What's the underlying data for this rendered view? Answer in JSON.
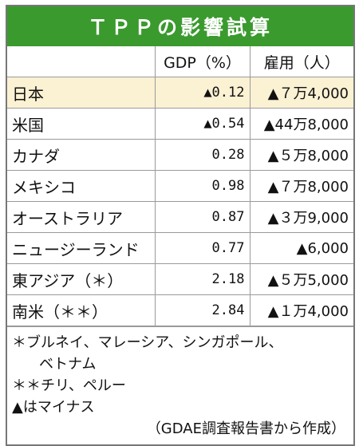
{
  "title": "ＴＰＰの影響試算",
  "table": {
    "headers": [
      "",
      "GDP（%）",
      "雇用（人）"
    ],
    "rows": [
      {
        "name": "日本",
        "gdp": "▲0.12",
        "employment": "▲７万4,000"
      },
      {
        "name": "米国",
        "gdp": "▲0.54",
        "employment": "▲44万8,000"
      },
      {
        "name": "カナダ",
        "gdp": "0.28",
        "employment": "▲５万8,000"
      },
      {
        "name": "メキシコ",
        "gdp": "0.98",
        "employment": "▲７万8,000"
      },
      {
        "name": "オーストラリア",
        "gdp": "0.87",
        "employment": "▲３万9,000"
      },
      {
        "name": "ニュージーランド",
        "gdp": "0.77",
        "employment": "▲6,000"
      },
      {
        "name": "東アジア（＊）",
        "gdp": "2.18",
        "employment": "▲５万5,000"
      },
      {
        "name": "南米（＊＊）",
        "gdp": "2.84",
        "employment": "▲１万4,000"
      }
    ]
  },
  "notes": {
    "note1_line1": "＊ブルネイ、マレーシア、シンガポール、",
    "note1_line2": "ベトナム",
    "note2": "＊＊チリ、ペルー",
    "note3": "▲はマイナス",
    "source": "（GDAE調査報告書から作成）"
  },
  "colors": {
    "title_background": "#3a9a2e",
    "title_text": "#ffffff",
    "highlight_row": "#fbf1d3"
  }
}
